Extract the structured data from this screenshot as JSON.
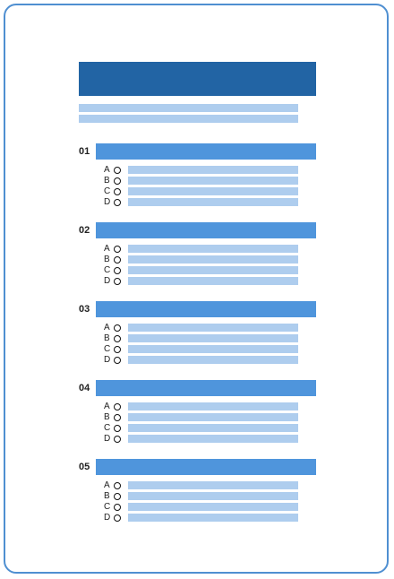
{
  "questions": [
    {
      "number": "01",
      "options": [
        "A",
        "B",
        "C",
        "D"
      ]
    },
    {
      "number": "02",
      "options": [
        "A",
        "B",
        "C",
        "D"
      ]
    },
    {
      "number": "03",
      "options": [
        "A",
        "B",
        "C",
        "D"
      ]
    },
    {
      "number": "04",
      "options": [
        "A",
        "B",
        "C",
        "D"
      ]
    },
    {
      "number": "05",
      "options": [
        "A",
        "B",
        "C",
        "D"
      ]
    }
  ],
  "colors": {
    "frame": "#4f8fd1",
    "header": "#2264a4",
    "question_bar": "#4f95dc",
    "placeholder_line": "#aecdee"
  }
}
